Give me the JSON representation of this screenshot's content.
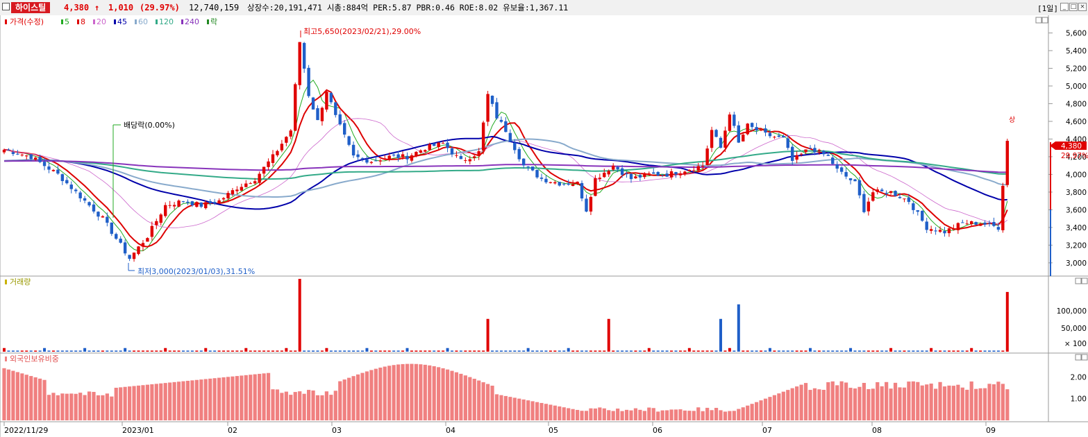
{
  "header": {
    "stock_name": "하이스틸",
    "price": "4,380",
    "change_arrow": "↑",
    "change": "1,010",
    "change_pct": "(29.97%)",
    "volume": "12,740,159",
    "info": "상장수:20,191,471  시총:884억  PER:5.87  PBR:0.46  ROE:8.02  유보율:1,367.11",
    "period": "[1일]"
  },
  "legend": {
    "price": "가격(수정)",
    "items": [
      {
        "label": "5",
        "color": "#22aa22"
      },
      {
        "label": "8",
        "color": "#dd0000"
      },
      {
        "label": "20",
        "color": "#cc66cc"
      },
      {
        "label": "45",
        "color": "#0000aa"
      },
      {
        "label": "60",
        "color": "#88aacc"
      },
      {
        "label": "120",
        "color": "#33aa88"
      },
      {
        "label": "240",
        "color": "#8833bb"
      },
      {
        "label": "락",
        "color": "#228822"
      }
    ],
    "volume": "거래량",
    "foreign": "외국인보유비중"
  },
  "annotations": {
    "high": "최고5,650(2023/02/21),29.00%",
    "low": "최저3,000(2023/01/03),31.51%",
    "dividend": "배당락(0.00%)",
    "limit_up": "상",
    "current_price": "4,380",
    "current_pct": "29.97%"
  },
  "chart_data": {
    "type": "candlestick",
    "price_axis": [
      3000,
      3200,
      3400,
      3600,
      3800,
      4000,
      4200,
      4400,
      4600,
      4800,
      5000,
      5200,
      5400,
      5600
    ],
    "volume_axis": [
      "× 100",
      "50,000",
      "100,000"
    ],
    "foreign_axis": [
      "1.00",
      "2.00"
    ],
    "x_labels": [
      "2022/11/29",
      "2023/01",
      "02",
      "03",
      "04",
      "05",
      "06",
      "07",
      "08",
      "09"
    ],
    "ylim": [
      2850,
      5800
    ],
    "keypoints": [
      [
        0,
        4280
      ],
      [
        6,
        4200
      ],
      [
        12,
        4000
      ],
      [
        18,
        3700
      ],
      [
        22,
        3500
      ],
      [
        26,
        3200
      ],
      [
        28,
        3050
      ],
      [
        32,
        3300
      ],
      [
        36,
        3650
      ],
      [
        40,
        3700
      ],
      [
        44,
        3650
      ],
      [
        48,
        3700
      ],
      [
        52,
        3850
      ],
      [
        56,
        3950
      ],
      [
        60,
        4200
      ],
      [
        64,
        4500
      ],
      [
        66,
        5500
      ],
      [
        68,
        4900
      ],
      [
        70,
        4600
      ],
      [
        72,
        4950
      ],
      [
        74,
        4650
      ],
      [
        78,
        4200
      ],
      [
        82,
        4150
      ],
      [
        86,
        4200
      ],
      [
        90,
        4200
      ],
      [
        94,
        4300
      ],
      [
        98,
        4350
      ],
      [
        102,
        4150
      ],
      [
        106,
        4250
      ],
      [
        108,
        4900
      ],
      [
        110,
        4650
      ],
      [
        112,
        4500
      ],
      [
        116,
        4100
      ],
      [
        120,
        3950
      ],
      [
        124,
        3900
      ],
      [
        128,
        3900
      ],
      [
        130,
        3600
      ],
      [
        132,
        3950
      ],
      [
        136,
        4100
      ],
      [
        140,
        3950
      ],
      [
        144,
        4000
      ],
      [
        148,
        4000
      ],
      [
        152,
        4050
      ],
      [
        156,
        4100
      ],
      [
        158,
        4500
      ],
      [
        160,
        4300
      ],
      [
        162,
        4700
      ],
      [
        164,
        4350
      ],
      [
        166,
        4550
      ],
      [
        170,
        4450
      ],
      [
        174,
        4400
      ],
      [
        176,
        4150
      ],
      [
        180,
        4300
      ],
      [
        184,
        4200
      ],
      [
        186,
        4050
      ],
      [
        190,
        3900
      ],
      [
        192,
        3600
      ],
      [
        194,
        3800
      ],
      [
        198,
        3800
      ],
      [
        202,
        3700
      ],
      [
        206,
        3400
      ],
      [
        210,
        3350
      ],
      [
        214,
        3450
      ],
      [
        218,
        3450
      ],
      [
        222,
        3400
      ],
      [
        224,
        4380
      ]
    ],
    "high_low_notes": [
      {
        "label": "최고",
        "value": 5650,
        "date": "2023/02/21"
      },
      {
        "label": "최저",
        "value": 3000,
        "date": "2023/01/03"
      }
    ]
  },
  "colors": {
    "up": "#e00000",
    "down": "#1f5fc8",
    "foreign": "#f08080"
  }
}
